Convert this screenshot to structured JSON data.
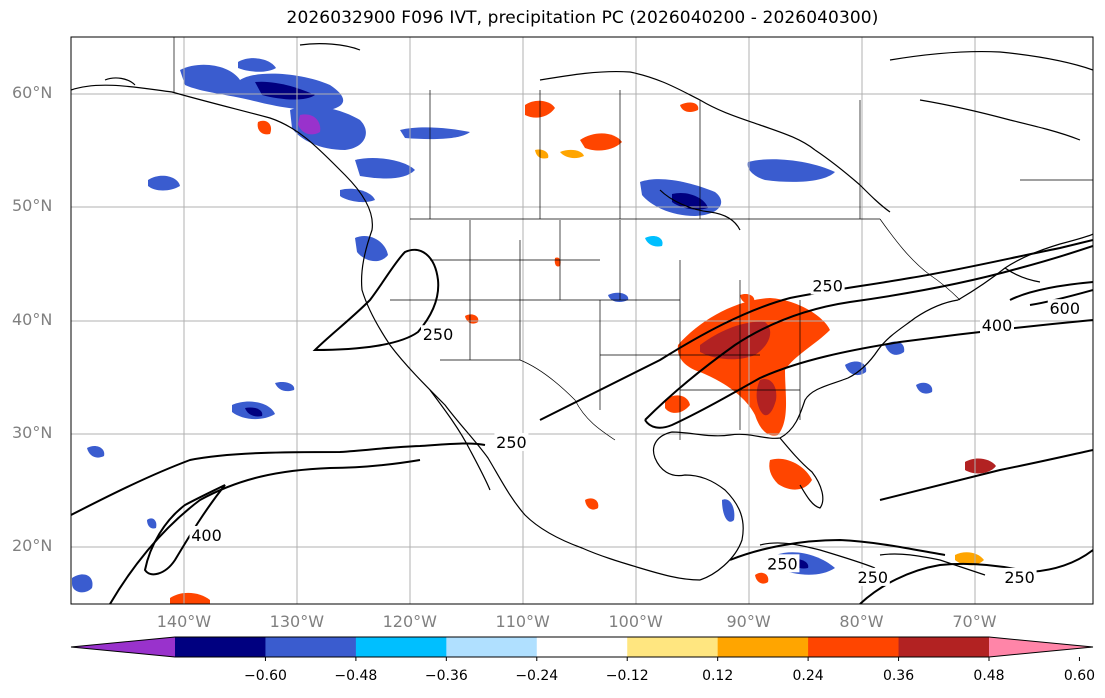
{
  "title": "2026032900 F096 IVT, precipitation PC (2026040200 - 2026040300)",
  "lat_labels": [
    {
      "text": "60°N",
      "lat": 60
    },
    {
      "text": "50°N",
      "lat": 50
    },
    {
      "text": "40°N",
      "lat": 40
    },
    {
      "text": "30°N",
      "lat": 30
    },
    {
      "text": "20°N",
      "lat": 20
    }
  ],
  "lon_labels": [
    {
      "text": "140°W",
      "lon": -140
    },
    {
      "text": "130°W",
      "lon": -130
    },
    {
      "text": "120°W",
      "lon": -120
    },
    {
      "text": "110°W",
      "lon": -110
    },
    {
      "text": "100°W",
      "lon": -100
    },
    {
      "text": "90°W",
      "lon": -90
    },
    {
      "text": "80°W",
      "lon": -80
    },
    {
      "text": "70°W",
      "lon": -70
    }
  ],
  "colorbar": {
    "colors": [
      "#9932cc",
      "#000080",
      "#3a5ccf",
      "#00bfff",
      "#b0e0ff",
      "#ffffff",
      "#ffe680",
      "#ffa500",
      "#ff4500",
      "#b22222",
      "#ff85a8"
    ],
    "ticks": [
      "−0.60",
      "−0.48",
      "−0.36",
      "−0.24",
      "−0.12",
      "0.12",
      "0.24",
      "0.36",
      "0.48",
      "0.60"
    ]
  },
  "contour_labels": [
    {
      "text": "250",
      "lon": -117.5,
      "lat": 38.7
    },
    {
      "text": "250",
      "lon": -111.0,
      "lat": 29.2
    },
    {
      "text": "400",
      "lon": -138.0,
      "lat": 21.0
    },
    {
      "text": "250",
      "lon": -87.0,
      "lat": 18.5
    },
    {
      "text": "250",
      "lon": -79.0,
      "lat": 17.3
    },
    {
      "text": "600",
      "lon": -62.0,
      "lat": 41.0
    },
    {
      "text": "400",
      "lon": -68.0,
      "lat": 39.5
    },
    {
      "text": "250",
      "lon": -83.0,
      "lat": 43.0
    },
    {
      "text": "250",
      "lon": -66.0,
      "lat": 17.3
    }
  ],
  "chart_data": {
    "type": "map",
    "projection": "PlateCarree",
    "lon_range": [
      -150,
      -59.5
    ],
    "lat_range": [
      15,
      65
    ],
    "shading": "precipitation PC",
    "contours": "IVT",
    "levels": [
      -0.6,
      -0.48,
      -0.36,
      -0.24,
      -0.12,
      0.12,
      0.24,
      0.36,
      0.48,
      0.6
    ],
    "contour_levels": [
      250,
      400,
      600
    ],
    "grid": true
  }
}
